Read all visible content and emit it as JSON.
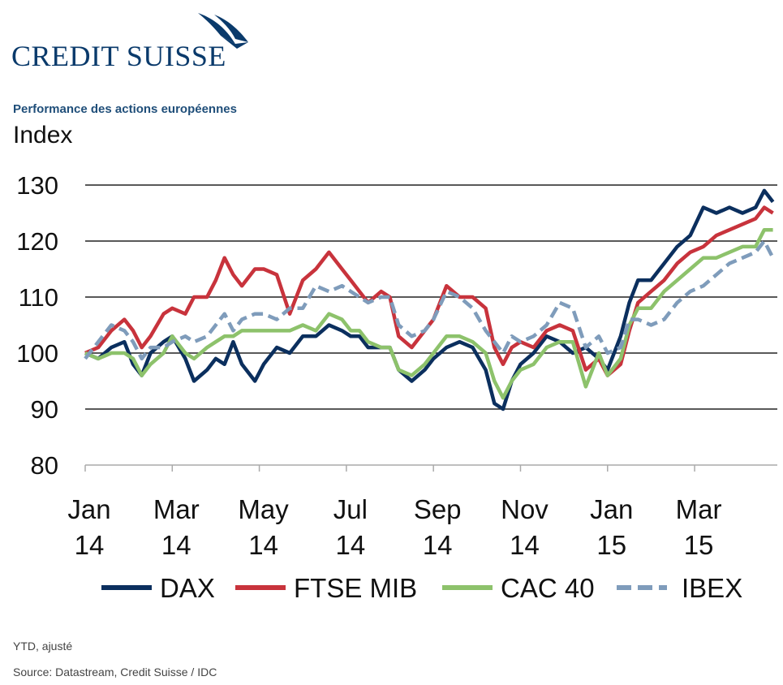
{
  "logo": {
    "text": "CREDIT SUISSE",
    "icon": "sail-icon",
    "color": "#0a3a6b"
  },
  "subtitle": "Performance des actions européennes",
  "notes": {
    "adjusted": "YTD, ajusté",
    "source": "Source: Datastream, Credit Suisse / IDC"
  },
  "chart_data": {
    "type": "line",
    "title": "Performance des actions européennes",
    "ylabel": "Index",
    "ylim": [
      80,
      130
    ],
    "yticks": [
      80,
      90,
      100,
      110,
      120,
      130
    ],
    "grid": "horizontal",
    "legend_position": "bottom",
    "xticks": [
      {
        "label": [
          "Jan",
          "14"
        ],
        "pos": 0
      },
      {
        "label": [
          "Mar",
          "14"
        ],
        "pos": 2
      },
      {
        "label": [
          "May",
          "14"
        ],
        "pos": 4
      },
      {
        "label": [
          "Jul",
          "14"
        ],
        "pos": 6
      },
      {
        "label": [
          "Sep",
          "14"
        ],
        "pos": 8
      },
      {
        "label": [
          "Nov",
          "14"
        ],
        "pos": 10
      },
      {
        "label": [
          "Jan",
          "15"
        ],
        "pos": 12
      },
      {
        "label": [
          "Mar",
          "15"
        ],
        "pos": 14
      }
    ],
    "xlim": [
      0,
      15.9
    ],
    "series": [
      {
        "name": "DAX",
        "color": "#0b2f5e",
        "dash": false,
        "points": [
          [
            0,
            100
          ],
          [
            0.3,
            99
          ],
          [
            0.6,
            101
          ],
          [
            0.9,
            102
          ],
          [
            1.1,
            98
          ],
          [
            1.3,
            96
          ],
          [
            1.5,
            100
          ],
          [
            1.8,
            102
          ],
          [
            2.0,
            103
          ],
          [
            2.3,
            99
          ],
          [
            2.5,
            95
          ],
          [
            2.8,
            97
          ],
          [
            3.0,
            99
          ],
          [
            3.2,
            98
          ],
          [
            3.4,
            102
          ],
          [
            3.6,
            98
          ],
          [
            3.9,
            95
          ],
          [
            4.1,
            98
          ],
          [
            4.4,
            101
          ],
          [
            4.7,
            100
          ],
          [
            5.0,
            103
          ],
          [
            5.3,
            103
          ],
          [
            5.6,
            105
          ],
          [
            5.9,
            104
          ],
          [
            6.1,
            103
          ],
          [
            6.3,
            103
          ],
          [
            6.5,
            101
          ],
          [
            6.8,
            101
          ],
          [
            7.0,
            101
          ],
          [
            7.2,
            97
          ],
          [
            7.5,
            95
          ],
          [
            7.8,
            97
          ],
          [
            8.0,
            99
          ],
          [
            8.3,
            101
          ],
          [
            8.6,
            102
          ],
          [
            8.9,
            101
          ],
          [
            9.2,
            97
          ],
          [
            9.4,
            91
          ],
          [
            9.6,
            90
          ],
          [
            9.8,
            95
          ],
          [
            10.0,
            98
          ],
          [
            10.3,
            100
          ],
          [
            10.6,
            103
          ],
          [
            10.9,
            102
          ],
          [
            11.2,
            100
          ],
          [
            11.5,
            101
          ],
          [
            11.8,
            99
          ],
          [
            12.0,
            97
          ],
          [
            12.3,
            103
          ],
          [
            12.5,
            109
          ],
          [
            12.7,
            113
          ],
          [
            13.0,
            113
          ],
          [
            13.3,
            116
          ],
          [
            13.6,
            119
          ],
          [
            13.9,
            121
          ],
          [
            14.2,
            126
          ],
          [
            14.5,
            125
          ],
          [
            14.8,
            126
          ],
          [
            15.1,
            125
          ],
          [
            15.4,
            126
          ],
          [
            15.6,
            129
          ],
          [
            15.8,
            127
          ]
        ]
      },
      {
        "name": "FTSE MIB",
        "color": "#c8333c",
        "dash": false,
        "points": [
          [
            0,
            100
          ],
          [
            0.3,
            101
          ],
          [
            0.6,
            104
          ],
          [
            0.9,
            106
          ],
          [
            1.1,
            104
          ],
          [
            1.3,
            101
          ],
          [
            1.5,
            103
          ],
          [
            1.8,
            107
          ],
          [
            2.0,
            108
          ],
          [
            2.3,
            107
          ],
          [
            2.5,
            110
          ],
          [
            2.8,
            110
          ],
          [
            3.0,
            113
          ],
          [
            3.2,
            117
          ],
          [
            3.4,
            114
          ],
          [
            3.6,
            112
          ],
          [
            3.9,
            115
          ],
          [
            4.1,
            115
          ],
          [
            4.4,
            114
          ],
          [
            4.7,
            107
          ],
          [
            5.0,
            113
          ],
          [
            5.3,
            115
          ],
          [
            5.6,
            118
          ],
          [
            5.9,
            115
          ],
          [
            6.1,
            113
          ],
          [
            6.3,
            111
          ],
          [
            6.5,
            109
          ],
          [
            6.8,
            111
          ],
          [
            7.0,
            110
          ],
          [
            7.2,
            103
          ],
          [
            7.5,
            101
          ],
          [
            7.8,
            104
          ],
          [
            8.0,
            106
          ],
          [
            8.3,
            112
          ],
          [
            8.6,
            110
          ],
          [
            8.9,
            110
          ],
          [
            9.2,
            108
          ],
          [
            9.4,
            101
          ],
          [
            9.6,
            98
          ],
          [
            9.8,
            101
          ],
          [
            10.0,
            102
          ],
          [
            10.3,
            101
          ],
          [
            10.6,
            104
          ],
          [
            10.9,
            105
          ],
          [
            11.2,
            104
          ],
          [
            11.5,
            97
          ],
          [
            11.8,
            99
          ],
          [
            12.0,
            96
          ],
          [
            12.3,
            98
          ],
          [
            12.5,
            104
          ],
          [
            12.7,
            109
          ],
          [
            13.0,
            111
          ],
          [
            13.3,
            113
          ],
          [
            13.6,
            116
          ],
          [
            13.9,
            118
          ],
          [
            14.2,
            119
          ],
          [
            14.5,
            121
          ],
          [
            14.8,
            122
          ],
          [
            15.1,
            123
          ],
          [
            15.4,
            124
          ],
          [
            15.6,
            126
          ],
          [
            15.8,
            125
          ]
        ]
      },
      {
        "name": "CAC 40",
        "color": "#8dc26b",
        "dash": false,
        "points": [
          [
            0,
            100
          ],
          [
            0.3,
            99
          ],
          [
            0.6,
            100
          ],
          [
            0.9,
            100
          ],
          [
            1.1,
            99
          ],
          [
            1.3,
            96
          ],
          [
            1.5,
            98
          ],
          [
            1.8,
            100
          ],
          [
            2.0,
            103
          ],
          [
            2.3,
            100
          ],
          [
            2.5,
            99
          ],
          [
            2.8,
            101
          ],
          [
            3.0,
            102
          ],
          [
            3.2,
            103
          ],
          [
            3.4,
            103
          ],
          [
            3.6,
            104
          ],
          [
            3.9,
            104
          ],
          [
            4.1,
            104
          ],
          [
            4.4,
            104
          ],
          [
            4.7,
            104
          ],
          [
            5.0,
            105
          ],
          [
            5.3,
            104
          ],
          [
            5.6,
            107
          ],
          [
            5.9,
            106
          ],
          [
            6.1,
            104
          ],
          [
            6.3,
            104
          ],
          [
            6.5,
            102
          ],
          [
            6.8,
            101
          ],
          [
            7.0,
            101
          ],
          [
            7.2,
            97
          ],
          [
            7.5,
            96
          ],
          [
            7.8,
            98
          ],
          [
            8.0,
            100
          ],
          [
            8.3,
            103
          ],
          [
            8.6,
            103
          ],
          [
            8.9,
            102
          ],
          [
            9.2,
            100
          ],
          [
            9.4,
            95
          ],
          [
            9.6,
            92
          ],
          [
            9.8,
            95
          ],
          [
            10.0,
            97
          ],
          [
            10.3,
            98
          ],
          [
            10.6,
            101
          ],
          [
            10.9,
            102
          ],
          [
            11.2,
            102
          ],
          [
            11.5,
            94
          ],
          [
            11.8,
            100
          ],
          [
            12.0,
            96
          ],
          [
            12.3,
            99
          ],
          [
            12.5,
            105
          ],
          [
            12.7,
            108
          ],
          [
            13.0,
            108
          ],
          [
            13.3,
            111
          ],
          [
            13.6,
            113
          ],
          [
            13.9,
            115
          ],
          [
            14.2,
            117
          ],
          [
            14.5,
            117
          ],
          [
            14.8,
            118
          ],
          [
            15.1,
            119
          ],
          [
            15.4,
            119
          ],
          [
            15.6,
            122
          ],
          [
            15.8,
            122
          ]
        ]
      },
      {
        "name": "IBEX",
        "color": "#7f9cbb",
        "dash": true,
        "points": [
          [
            0,
            99
          ],
          [
            0.3,
            102
          ],
          [
            0.6,
            105
          ],
          [
            0.9,
            104
          ],
          [
            1.1,
            102
          ],
          [
            1.3,
            99
          ],
          [
            1.5,
            101
          ],
          [
            1.8,
            101
          ],
          [
            2.0,
            102
          ],
          [
            2.3,
            103
          ],
          [
            2.5,
            102
          ],
          [
            2.8,
            103
          ],
          [
            3.0,
            105
          ],
          [
            3.2,
            107
          ],
          [
            3.4,
            104
          ],
          [
            3.6,
            106
          ],
          [
            3.9,
            107
          ],
          [
            4.1,
            107
          ],
          [
            4.4,
            106
          ],
          [
            4.7,
            108
          ],
          [
            5.0,
            108
          ],
          [
            5.3,
            112
          ],
          [
            5.6,
            111
          ],
          [
            5.9,
            112
          ],
          [
            6.1,
            111
          ],
          [
            6.3,
            110
          ],
          [
            6.5,
            109
          ],
          [
            6.8,
            110
          ],
          [
            7.0,
            110
          ],
          [
            7.2,
            105
          ],
          [
            7.5,
            103
          ],
          [
            7.8,
            104
          ],
          [
            8.0,
            106
          ],
          [
            8.3,
            111
          ],
          [
            8.6,
            110
          ],
          [
            8.9,
            108
          ],
          [
            9.2,
            104
          ],
          [
            9.4,
            102
          ],
          [
            9.6,
            100
          ],
          [
            9.8,
            103
          ],
          [
            10.0,
            102
          ],
          [
            10.3,
            103
          ],
          [
            10.6,
            105
          ],
          [
            10.9,
            109
          ],
          [
            11.2,
            108
          ],
          [
            11.5,
            101
          ],
          [
            11.8,
            103
          ],
          [
            12.0,
            100
          ],
          [
            12.3,
            101
          ],
          [
            12.5,
            106
          ],
          [
            12.7,
            106
          ],
          [
            13.0,
            105
          ],
          [
            13.3,
            106
          ],
          [
            13.6,
            109
          ],
          [
            13.9,
            111
          ],
          [
            14.2,
            112
          ],
          [
            14.5,
            114
          ],
          [
            14.8,
            116
          ],
          [
            15.1,
            117
          ],
          [
            15.4,
            118
          ],
          [
            15.6,
            120
          ],
          [
            15.8,
            117
          ]
        ]
      }
    ]
  }
}
